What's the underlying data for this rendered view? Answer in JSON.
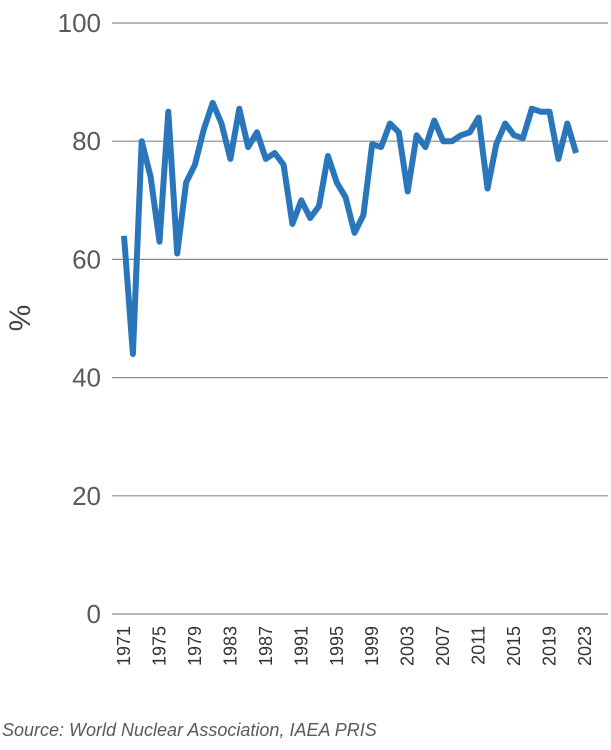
{
  "source_text": "Source: World Nuclear Association, IAEA PRIS",
  "colors": {
    "line": "#2a76bb",
    "grid": "#8c8c8c"
  },
  "chart_data": {
    "type": "line",
    "title": "",
    "xlabel": "",
    "ylabel": "%",
    "ylim": [
      0,
      100
    ],
    "y_ticks": [
      "0",
      "20",
      "40",
      "60",
      "80",
      "100"
    ],
    "x_tick_labels": [
      "1971",
      "1975",
      "1979",
      "1983",
      "1987",
      "1991",
      "1995",
      "1999",
      "2003",
      "2007",
      "2011",
      "2015",
      "2019",
      "2023"
    ],
    "grid": "horizontal",
    "x": [
      1971,
      1972,
      1973,
      1974,
      1975,
      1976,
      1977,
      1978,
      1979,
      1980,
      1981,
      1982,
      1983,
      1984,
      1985,
      1986,
      1987,
      1988,
      1989,
      1990,
      1991,
      1992,
      1993,
      1994,
      1995,
      1996,
      1997,
      1998,
      1999,
      2000,
      2001,
      2002,
      2003,
      2004,
      2005,
      2006,
      2007,
      2008,
      2009,
      2010,
      2011,
      2012,
      2013,
      2014,
      2015,
      2016,
      2017,
      2018,
      2019,
      2020,
      2021,
      2022
    ],
    "series": [
      {
        "values": [
          64,
          44,
          80,
          74,
          63,
          85,
          61,
          73,
          76,
          82,
          86.5,
          83,
          77,
          85.5,
          79,
          81.5,
          77,
          78,
          76,
          66,
          70,
          67,
          69,
          77.5,
          73,
          70.5,
          64.5,
          67.5,
          79.5,
          79,
          83,
          81.5,
          71.5,
          81,
          79,
          83.5,
          80,
          80,
          81,
          81.5,
          84,
          72,
          79.5,
          83,
          81,
          80.5,
          85.5,
          85,
          85,
          77,
          83,
          78
        ]
      }
    ]
  }
}
